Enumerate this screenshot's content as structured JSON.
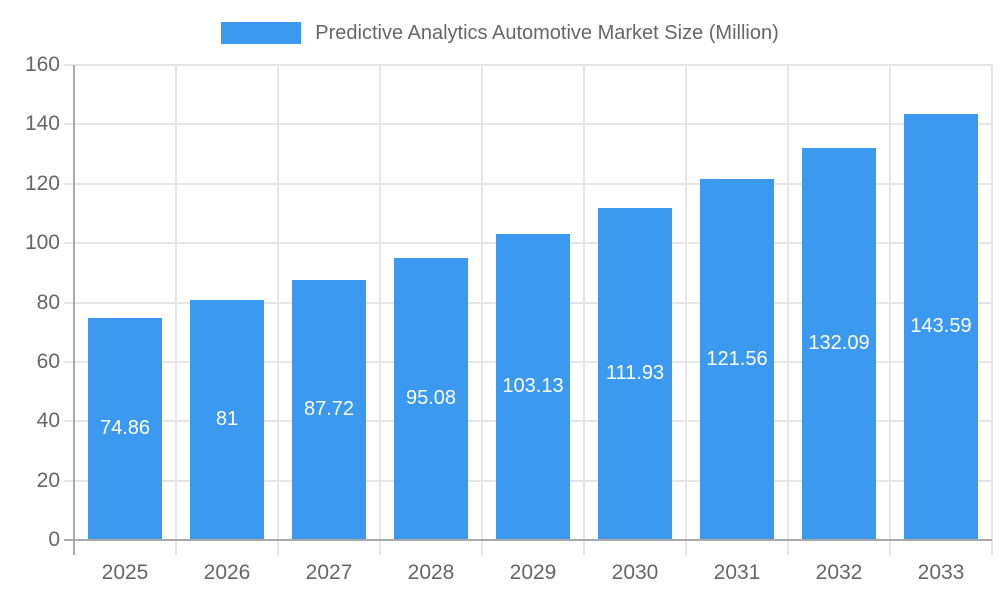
{
  "chart_data": {
    "type": "bar",
    "title": "Predictive Analytics Automotive Market Size (Million)",
    "legend": {
      "position": "top",
      "label": "Predictive Analytics Automotive Market Size (Million)"
    },
    "categories": [
      "2025",
      "2026",
      "2027",
      "2028",
      "2029",
      "2030",
      "2031",
      "2032",
      "2033"
    ],
    "series": [
      {
        "name": "Predictive Analytics Automotive Market Size (Million)",
        "values": [
          74.86,
          81,
          87.72,
          95.08,
          103.13,
          111.93,
          121.56,
          132.09,
          143.59
        ],
        "value_labels": [
          "74.86",
          "81",
          "87.72",
          "95.08",
          "103.13",
          "111.93",
          "121.56",
          "132.09",
          "143.59"
        ]
      }
    ],
    "xlabel": "",
    "ylabel": "",
    "ylim": [
      0,
      160
    ],
    "yticks": [
      0,
      20,
      40,
      60,
      80,
      100,
      120,
      140,
      160
    ],
    "grid": true,
    "legend_position": "top",
    "colors": {
      "bar": "#3b9af0",
      "grid": "#e6e6e6",
      "axis": "#a9a9a9",
      "tick_text": "#666666",
      "data_label": "#ffffff",
      "background": "#ffffff"
    }
  }
}
